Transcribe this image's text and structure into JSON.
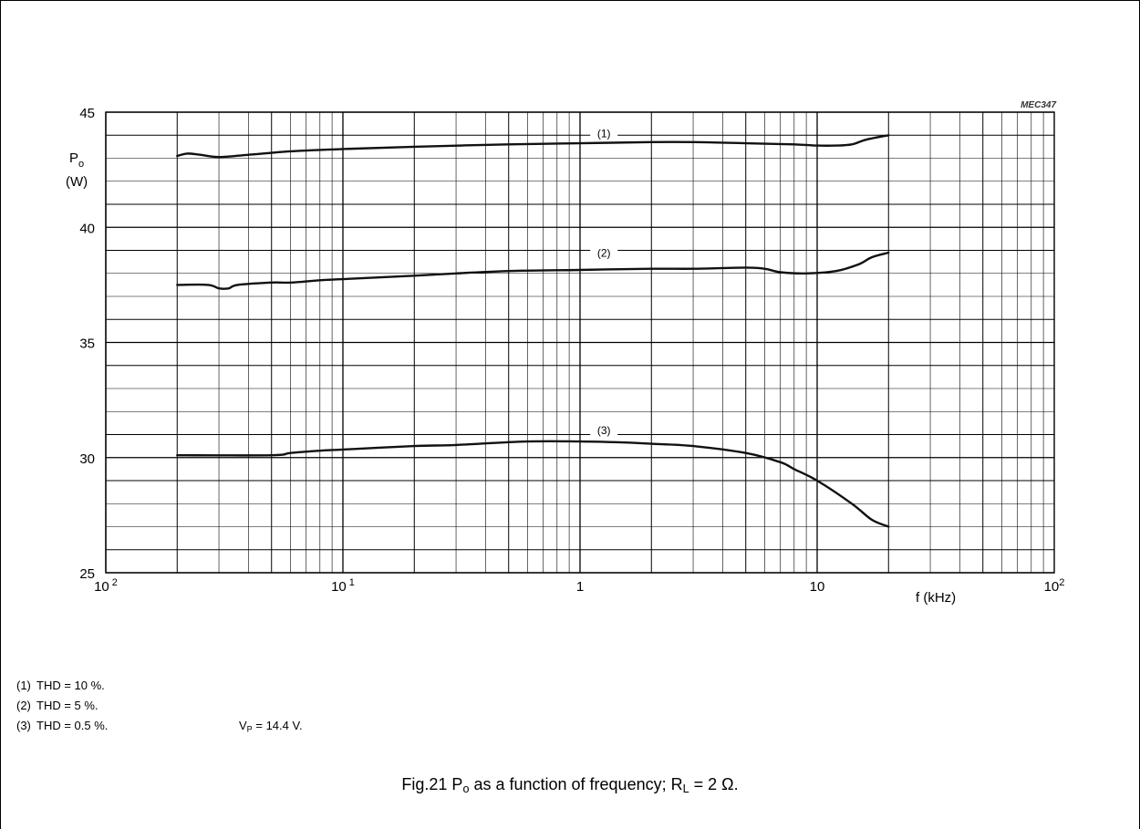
{
  "code_label": "MEC347",
  "chart_data": {
    "type": "line",
    "x_scale": "log",
    "xlim": [
      0.01,
      100
    ],
    "ylim": [
      25,
      45
    ],
    "grid": true,
    "y_label": "P",
    "y_label_sub": "o",
    "y_unit": "(W)",
    "x_label": "f (kHz)",
    "y_ticks": [
      {
        "value": 25,
        "label": "25"
      },
      {
        "value": 30,
        "label": "30"
      },
      {
        "value": 35,
        "label": "35"
      },
      {
        "value": 40,
        "label": "40"
      },
      {
        "value": 45,
        "label": "45"
      }
    ],
    "x_ticks": [
      {
        "value": 0.01,
        "base": "10",
        "exp": " 2"
      },
      {
        "value": 0.1,
        "base": "10",
        "exp": " 1"
      },
      {
        "value": 1,
        "base": "1",
        "exp": ""
      },
      {
        "value": 10,
        "base": "10",
        "exp": ""
      },
      {
        "value": 100,
        "base": "10",
        "exp": "2"
      }
    ],
    "series": [
      {
        "name": "(1)",
        "label_at": [
          1.25,
          44.0
        ],
        "points": [
          [
            0.02,
            43.1
          ],
          [
            0.022,
            43.2
          ],
          [
            0.025,
            43.15
          ],
          [
            0.03,
            43.05
          ],
          [
            0.04,
            43.15
          ],
          [
            0.06,
            43.3
          ],
          [
            0.1,
            43.4
          ],
          [
            0.2,
            43.5
          ],
          [
            0.5,
            43.6
          ],
          [
            1.0,
            43.65
          ],
          [
            2.0,
            43.7
          ],
          [
            3.0,
            43.7
          ],
          [
            5.0,
            43.65
          ],
          [
            8.0,
            43.6
          ],
          [
            10.0,
            43.55
          ],
          [
            12.0,
            43.55
          ],
          [
            14.0,
            43.6
          ],
          [
            16.0,
            43.8
          ],
          [
            20.0,
            44.0
          ]
        ]
      },
      {
        "name": "(2)",
        "label_at": [
          1.25,
          38.8
        ],
        "points": [
          [
            0.02,
            37.5
          ],
          [
            0.027,
            37.5
          ],
          [
            0.03,
            37.35
          ],
          [
            0.033,
            37.35
          ],
          [
            0.036,
            37.5
          ],
          [
            0.05,
            37.6
          ],
          [
            0.06,
            37.6
          ],
          [
            0.08,
            37.7
          ],
          [
            0.1,
            37.75
          ],
          [
            0.2,
            37.9
          ],
          [
            0.3,
            38.0
          ],
          [
            0.5,
            38.1
          ],
          [
            1.0,
            38.15
          ],
          [
            2.0,
            38.2
          ],
          [
            3.0,
            38.2
          ],
          [
            5.0,
            38.25
          ],
          [
            6.0,
            38.2
          ],
          [
            7.0,
            38.05
          ],
          [
            9.0,
            38.0
          ],
          [
            12.0,
            38.1
          ],
          [
            15.0,
            38.4
          ],
          [
            17.0,
            38.7
          ],
          [
            20.0,
            38.9
          ]
        ]
      },
      {
        "name": "(3)",
        "label_at": [
          1.25,
          31.1
        ],
        "points": [
          [
            0.02,
            30.1
          ],
          [
            0.05,
            30.1
          ],
          [
            0.06,
            30.2
          ],
          [
            0.08,
            30.3
          ],
          [
            0.1,
            30.35
          ],
          [
            0.2,
            30.5
          ],
          [
            0.3,
            30.55
          ],
          [
            0.6,
            30.7
          ],
          [
            1.0,
            30.7
          ],
          [
            1.6,
            30.65
          ],
          [
            2.0,
            30.6
          ],
          [
            3.0,
            30.5
          ],
          [
            5.0,
            30.2
          ],
          [
            7.0,
            29.8
          ],
          [
            8.0,
            29.5
          ],
          [
            10.0,
            29.0
          ],
          [
            14.0,
            28.0
          ],
          [
            17.0,
            27.3
          ],
          [
            20.0,
            27.0
          ]
        ]
      }
    ]
  },
  "notes": [
    {
      "num": "(1)",
      "text": "THD = 10 %."
    },
    {
      "num": "(2)",
      "text": "THD = 5 %."
    },
    {
      "num": "(3)",
      "text": "THD = 0.5 %."
    }
  ],
  "vp": {
    "label": "V",
    "sub": "P",
    "text": " = 14.4 V."
  },
  "caption": {
    "prefix": "Fig.21  P",
    "sub1": "o",
    "middle": " as a function of frequency; R",
    "sub2": "L",
    "suffix": " = 2 Ω."
  }
}
